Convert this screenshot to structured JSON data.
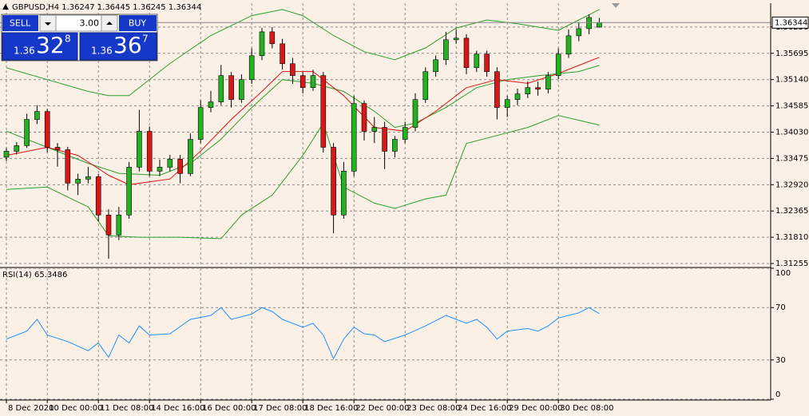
{
  "chart_data": [
    {
      "type": "candlestick",
      "title": "GBPUSD,H4  1.36247 1.36445 1.36245 1.36344",
      "categories": [
        "8 Dec 2020",
        null,
        null,
        null,
        "10 Dec 00:00",
        null,
        null,
        null,
        null,
        "11 Dec 08:00",
        null,
        null,
        null,
        null,
        "14 Dec 16:00",
        null,
        null,
        null,
        null,
        "16 Dec 00:00",
        null,
        null,
        null,
        null,
        "17 Dec 08:00",
        null,
        null,
        null,
        null,
        "18 Dec 16:00",
        null,
        null,
        null,
        null,
        "22 Dec 00:00",
        null,
        null,
        null,
        null,
        "23 Dec 08:00",
        null,
        null,
        null,
        null,
        "24 Dec 16:00",
        null,
        null,
        null,
        null,
        "29 Dec 00:00",
        null,
        null,
        null,
        null,
        "30 Dec 08:00",
        null,
        null,
        null,
        null
      ],
      "open": [
        1.335,
        1.33626,
        1.33744,
        1.34299,
        1.34467,
        1.3371,
        1.3366,
        1.32953,
        1.33037,
        1.33088,
        1.3228,
        1.3186,
        1.3228,
        1.3329,
        1.34047,
        1.33206,
        1.3329,
        1.33458,
        1.33155,
        1.33878,
        1.34551,
        1.34669,
        1.35224,
        1.34719,
        1.3514,
        1.35644,
        1.36149,
        1.35897,
        1.35476,
        1.35224,
        1.34972,
        1.35224,
        1.3371,
        1.3228,
        1.33206,
        1.34635,
        1.34047,
        1.34131,
        1.33626,
        1.33878,
        1.34131,
        1.34719,
        1.35308,
        1.3556,
        1.35981,
        1.36015,
        1.35392,
        1.35678,
        1.35308,
        1.34551,
        1.34719,
        1.34837,
        1.34972,
        1.34938,
        1.35224,
        1.35678,
        1.36065,
        1.36216,
        1.36247
      ],
      "high": [
        1.337,
        1.3382,
        1.3442,
        1.346,
        1.3452,
        1.338,
        1.3372,
        1.3315,
        1.333,
        1.3315,
        1.324,
        1.3245,
        1.334,
        1.345,
        1.3415,
        1.3345,
        1.3355,
        1.3355,
        1.34,
        1.347,
        1.349,
        1.3545,
        1.353,
        1.3525,
        1.358,
        1.36233,
        1.3625,
        1.36,
        1.356,
        1.353,
        1.3535,
        1.353,
        1.338,
        1.334,
        1.348,
        1.347,
        1.3435,
        1.3425,
        1.3395,
        1.3425,
        1.3485,
        1.354,
        1.3565,
        1.3615,
        1.362,
        1.361,
        1.3575,
        1.3575,
        1.354,
        1.348,
        1.3495,
        1.351,
        1.351,
        1.353,
        1.358,
        1.362,
        1.3635,
        1.36519,
        1.36445
      ],
      "low": [
        1.3342,
        1.3356,
        1.337,
        1.342,
        1.336,
        1.333,
        1.328,
        1.327,
        1.3295,
        1.3215,
        1.31355,
        1.3175,
        1.322,
        1.332,
        1.331,
        1.331,
        1.332,
        1.3295,
        1.331,
        1.338,
        1.3445,
        1.346,
        1.3455,
        1.3465,
        1.3505,
        1.3555,
        1.358,
        1.3535,
        1.3505,
        1.3485,
        1.349,
        1.336,
        1.31894,
        1.322,
        1.331,
        1.3385,
        1.338,
        1.3325,
        1.335,
        1.338,
        1.3405,
        1.3465,
        1.352,
        1.3545,
        1.359,
        1.3525,
        1.353,
        1.352,
        1.343,
        1.3435,
        1.346,
        1.3475,
        1.348,
        1.3485,
        1.3515,
        1.356,
        1.3595,
        1.361,
        1.36245
      ],
      "close": [
        1.33626,
        1.33744,
        1.34299,
        1.34467,
        1.3371,
        1.3366,
        1.32953,
        1.33037,
        1.33088,
        1.3228,
        1.3186,
        1.3228,
        1.3329,
        1.34047,
        1.33206,
        1.3329,
        1.33458,
        1.33155,
        1.33878,
        1.34551,
        1.34669,
        1.35224,
        1.34719,
        1.3514,
        1.35644,
        1.36149,
        1.35897,
        1.35476,
        1.35224,
        1.34972,
        1.35224,
        1.3371,
        1.3228,
        1.33206,
        1.34635,
        1.34047,
        1.34131,
        1.33626,
        1.33878,
        1.34131,
        1.34719,
        1.35308,
        1.3556,
        1.35981,
        1.36015,
        1.35392,
        1.35678,
        1.35308,
        1.34551,
        1.34719,
        1.34837,
        1.34972,
        1.34938,
        1.35224,
        1.35678,
        1.36065,
        1.36216,
        1.36452,
        1.36344
      ],
      "up_color": "#22b222",
      "down_color": "#d81818",
      "lines": [
        {
          "color": "#2aa02a",
          "x": [
            0,
            4,
            8,
            10,
            12,
            16,
            20,
            24,
            27,
            29,
            32,
            35,
            38,
            41,
            44,
            47,
            50,
            54,
            56,
            58
          ],
          "values": [
            1.3539,
            1.3514,
            1.3489,
            1.348,
            1.348,
            1.3548,
            1.3607,
            1.3649,
            1.3662,
            1.3649,
            1.3607,
            1.3573,
            1.3556,
            1.3581,
            1.3623,
            1.364,
            1.3632,
            1.3618,
            1.364,
            1.3662
          ]
        },
        {
          "color": "#2aa02a",
          "x": [
            0,
            4,
            8,
            11,
            15,
            18,
            21,
            24,
            27,
            30,
            33,
            36,
            38,
            40,
            43,
            46,
            49,
            52,
            56,
            58
          ],
          "values": [
            1.3405,
            1.3371,
            1.3337,
            1.3316,
            1.3312,
            1.3337,
            1.3388,
            1.3455,
            1.3514,
            1.3506,
            1.3489,
            1.3447,
            1.3413,
            1.3422,
            1.3455,
            1.3497,
            1.3514,
            1.3522,
            1.3531,
            1.3544
          ]
        },
        {
          "color": "#2aa02a",
          "x": [
            0,
            4,
            8,
            10,
            13,
            17,
            21,
            23,
            26,
            29,
            31,
            33,
            36,
            38,
            41,
            43,
            45,
            48,
            51,
            54,
            58
          ],
          "values": [
            1.3282,
            1.3287,
            1.3245,
            1.3184,
            1.3181,
            1.3181,
            1.3178,
            1.3228,
            1.327,
            1.3354,
            1.3422,
            1.3287,
            1.3253,
            1.3242,
            1.3262,
            1.327,
            1.3379,
            1.3396,
            1.3413,
            1.3438,
            1.3418
          ]
        },
        {
          "color": "#e01010",
          "x": [
            0,
            4,
            7,
            10,
            12,
            16,
            19,
            22,
            25,
            27,
            30,
            33,
            36,
            39,
            42,
            45,
            48,
            51,
            54,
            56,
            58
          ],
          "values": [
            1.3354,
            1.3371,
            1.3354,
            1.3312,
            1.3292,
            1.3304,
            1.3363,
            1.343,
            1.3489,
            1.3531,
            1.3531,
            1.348,
            1.3413,
            1.3405,
            1.3447,
            1.3497,
            1.3514,
            1.3506,
            1.3527,
            1.3544,
            1.3561
          ]
        }
      ],
      "current_price": 1.36344,
      "ylim": [
        1.31205,
        1.36737
      ],
      "yticks": [
        {
          "value": 1.3625,
          "label": "1.36250"
        },
        {
          "value": 1.35695,
          "label": "1.35695"
        },
        {
          "value": 1.3514,
          "label": "1.35140"
        },
        {
          "value": 1.34585,
          "label": "1.34585"
        },
        {
          "value": 1.3403,
          "label": "1.34030"
        },
        {
          "value": 1.33475,
          "label": "1.33475"
        },
        {
          "value": 1.3292,
          "label": "1.32920"
        },
        {
          "value": 1.32365,
          "label": "1.32365"
        },
        {
          "value": 1.3181,
          "label": "1.31810"
        },
        {
          "value": 1.31255,
          "label": "1.31255"
        }
      ],
      "grid": true
    },
    {
      "type": "line",
      "title": "RSI(14) 65.3486",
      "color": "#1e90ff",
      "x": [
        0,
        2,
        3,
        4,
        6,
        8,
        9,
        10,
        11,
        12,
        13,
        14,
        16,
        18,
        20,
        21,
        22,
        24,
        25,
        26,
        27,
        29,
        30,
        31,
        32,
        33,
        34,
        35,
        36,
        37,
        39,
        41,
        43,
        44,
        45,
        46,
        47,
        48,
        49,
        51,
        52,
        53,
        54,
        55,
        56,
        57,
        58
      ],
      "values": [
        46,
        52,
        61,
        49,
        44,
        37,
        43,
        32,
        49,
        43,
        56,
        49,
        50,
        61,
        64,
        70,
        61,
        65,
        70,
        67,
        61,
        55,
        58,
        49,
        31,
        46,
        55,
        50,
        49,
        44,
        49,
        56,
        64,
        61,
        58,
        61,
        55,
        46,
        52,
        54,
        52,
        56,
        62,
        64,
        66,
        70,
        65.3486
      ],
      "ylim": [
        0,
        100
      ],
      "yticks": [
        0,
        30,
        70,
        100
      ],
      "grid": true
    }
  ],
  "trade_panel": {
    "sell": "SELL",
    "buy": "BUY",
    "volume": "3.00",
    "bid": {
      "prefix": "1.36",
      "big": "32",
      "sup": "8"
    },
    "ask": {
      "prefix": "1.36",
      "big": "36",
      "sup": "7"
    }
  }
}
